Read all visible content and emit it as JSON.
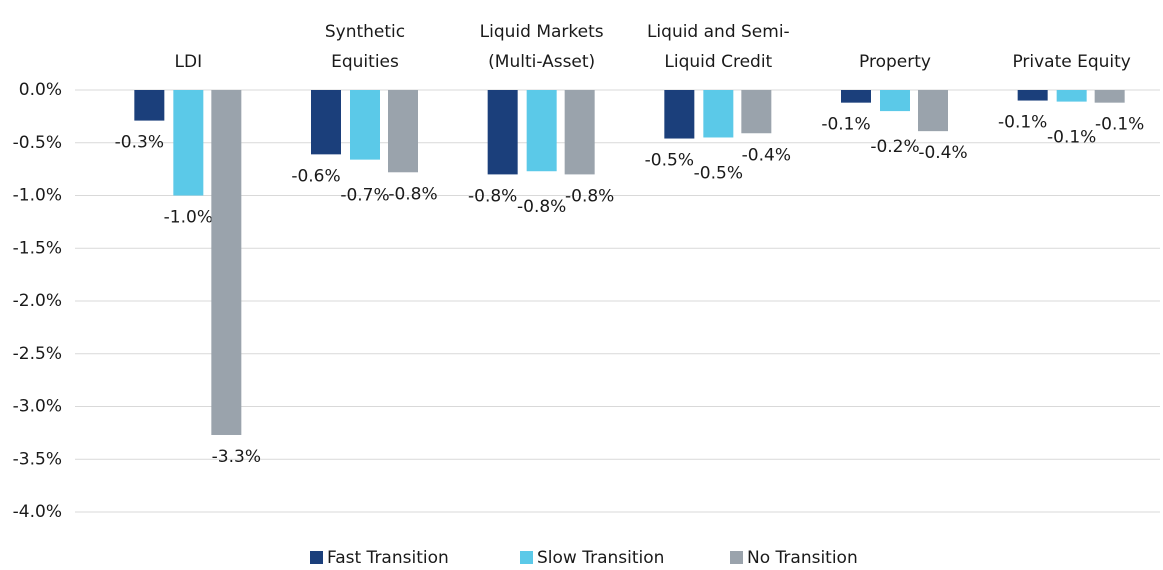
{
  "chart_data": {
    "type": "bar",
    "categories": [
      [
        "LDI"
      ],
      [
        "Synthetic",
        "Equities"
      ],
      [
        "Liquid Markets",
        "(Multi-Asset)"
      ],
      [
        "Liquid and Semi-",
        "Liquid Credit"
      ],
      [
        "Property"
      ],
      [
        "Private Equity"
      ]
    ],
    "series": [
      {
        "name": "Fast Transition",
        "color": "#1b3f7b",
        "values": [
          -0.29,
          -0.61,
          -0.8,
          -0.46,
          -0.12,
          -0.1
        ],
        "value_labels": [
          "-0.3%",
          "-0.6%",
          "-0.8%",
          "-0.5%",
          "-0.1%",
          "-0.1%"
        ]
      },
      {
        "name": "Slow Transition",
        "color": "#5bc9e8",
        "values": [
          -1.0,
          -0.66,
          -0.77,
          -0.45,
          -0.2,
          -0.11
        ],
        "value_labels": [
          "-1.0%",
          "-0.7%",
          "-0.8%",
          "-0.5%",
          "-0.2%",
          "-0.1%"
        ]
      },
      {
        "name": "No Transition",
        "color": "#9aa3ac",
        "values": [
          -3.27,
          -0.78,
          -0.8,
          -0.41,
          -0.39,
          -0.12
        ],
        "value_labels": [
          "-3.3%",
          "-0.8%",
          "-0.8%",
          "-0.4%",
          "-0.4%",
          "-0.1%"
        ]
      }
    ],
    "ylim": [
      -4.0,
      0.0
    ],
    "yticks": [
      {
        "value": 0.0,
        "label": "0.0%"
      },
      {
        "value": -0.5,
        "label": "-0.5%"
      },
      {
        "value": -1.0,
        "label": "-1.0%"
      },
      {
        "value": -1.5,
        "label": "-1.5%"
      },
      {
        "value": -2.0,
        "label": "-2.0%"
      },
      {
        "value": -2.5,
        "label": "-2.5%"
      },
      {
        "value": -3.0,
        "label": "-3.0%"
      },
      {
        "value": -3.5,
        "label": "-3.5%"
      },
      {
        "value": -4.0,
        "label": "-4.0%"
      }
    ],
    "grid": true,
    "legend": "bottom"
  }
}
